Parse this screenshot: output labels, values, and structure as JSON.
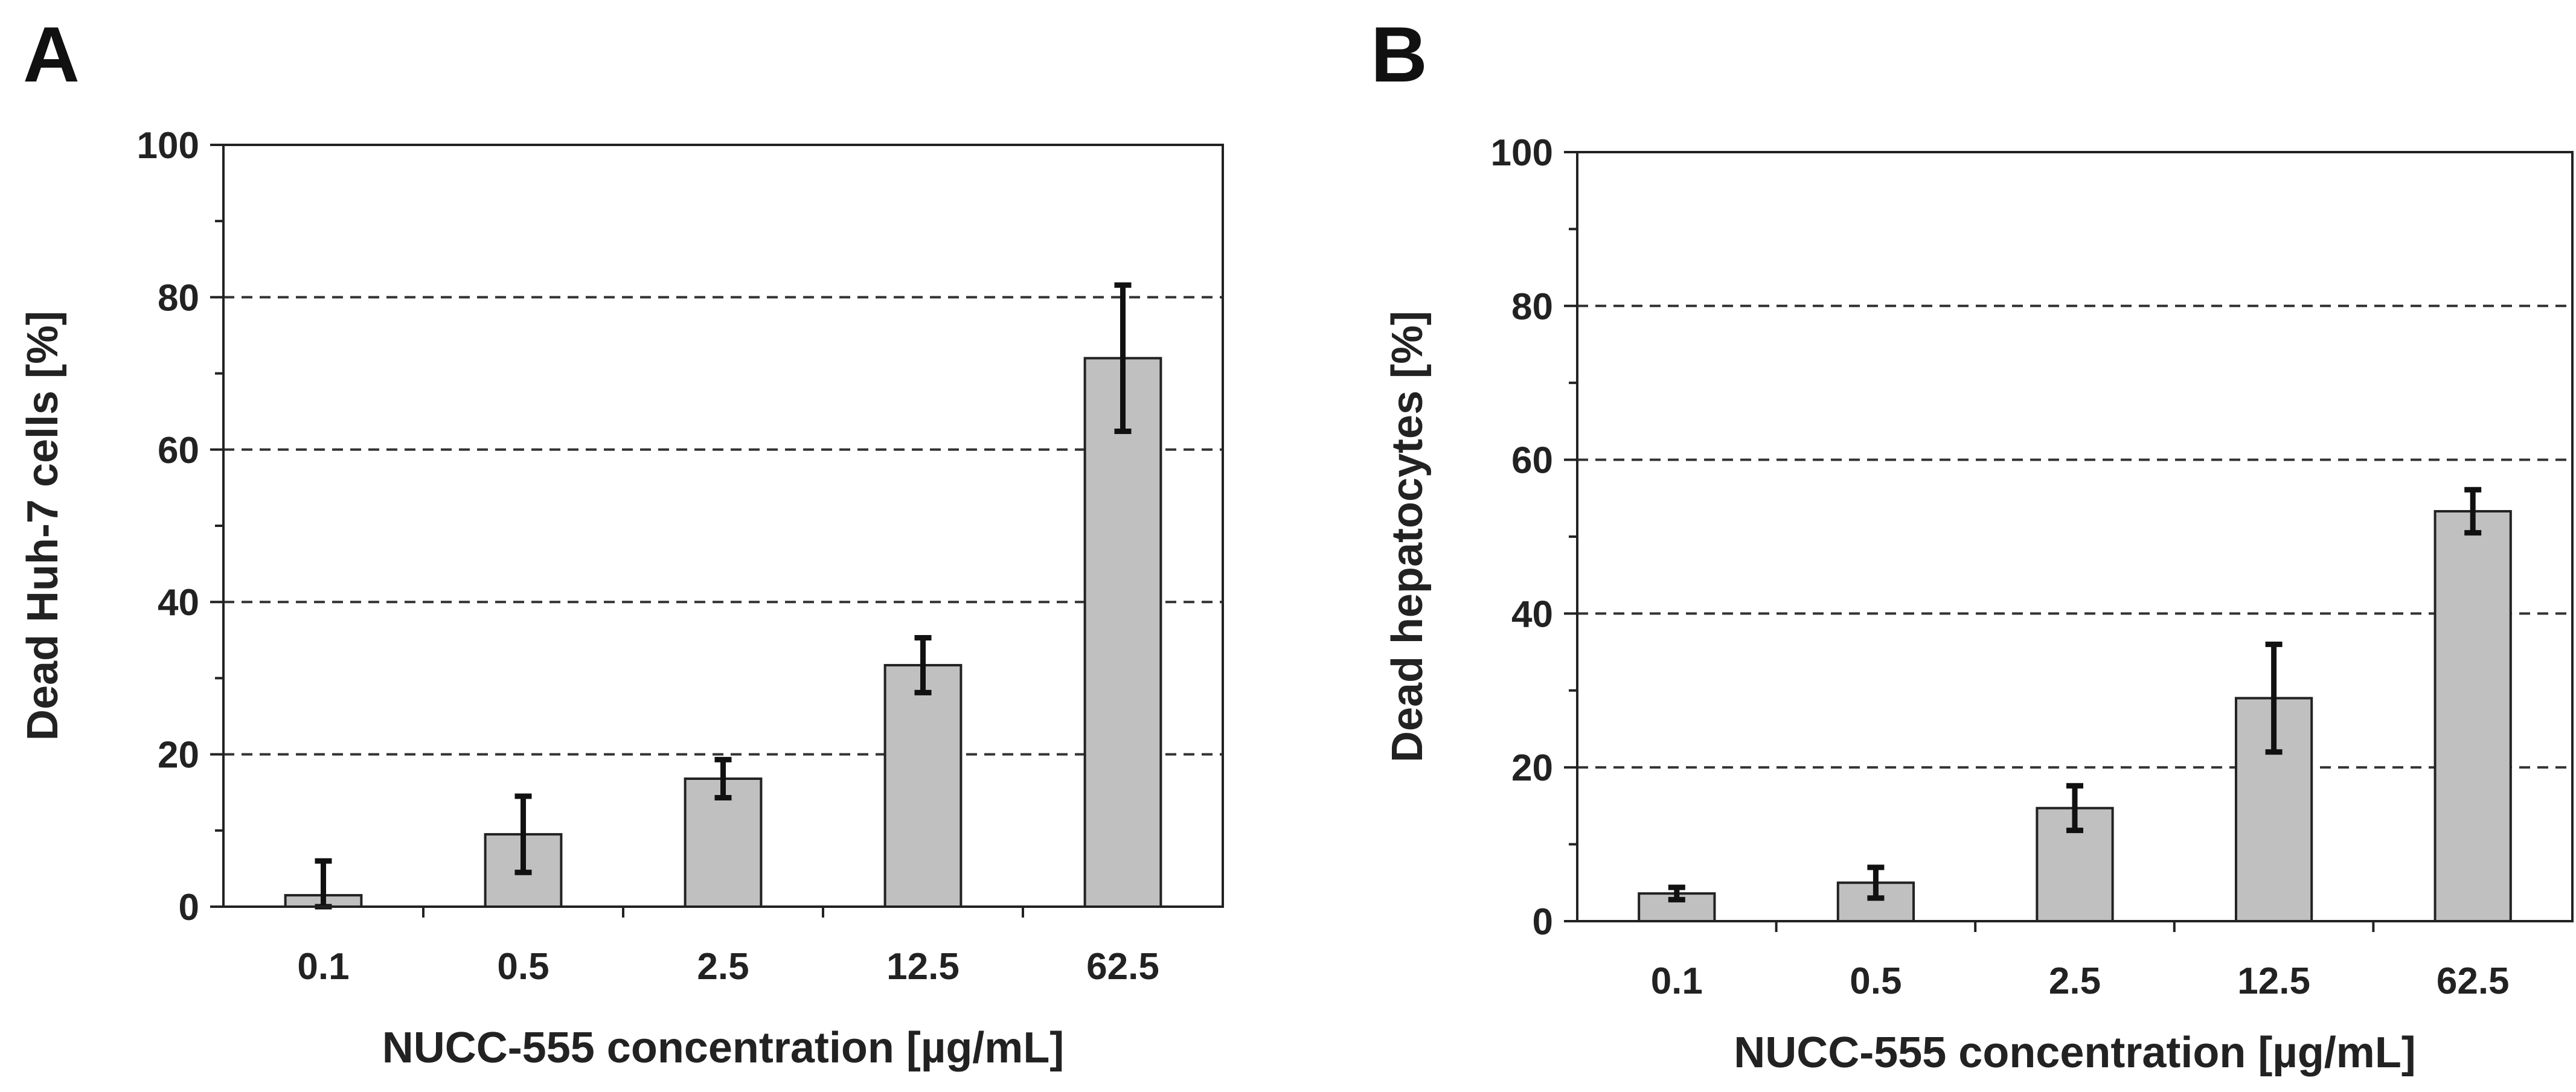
{
  "chart_data": [
    {
      "panel": "A",
      "type": "bar",
      "title": "",
      "xlabel": "NUCC-555 concentration [µg/mL]",
      "ylabel": "Dead Huh-7 cells [%]",
      "categories": [
        "0.1",
        "0.5",
        "2.5",
        "12.5",
        "62.5"
      ],
      "values": [
        1.5,
        9.5,
        16.8,
        31.7,
        72.0
      ],
      "errors": [
        4.5,
        5.0,
        2.5,
        3.6,
        9.6
      ],
      "ylim": [
        0,
        100
      ],
      "yticks": [
        0,
        20,
        40,
        60,
        80,
        100
      ],
      "grid": "dashed horizontal at 20, 40, 60, 80"
    },
    {
      "panel": "B",
      "type": "bar",
      "title": "",
      "xlabel": "NUCC-555 concentration [µg/mL]",
      "ylabel": "Dead hepatocytes [%]",
      "categories": [
        "0.1",
        "0.5",
        "2.5",
        "12.5",
        "62.5"
      ],
      "values": [
        3.6,
        5.0,
        14.7,
        29.0,
        53.3
      ],
      "errors": [
        0.8,
        2.0,
        2.9,
        7.0,
        2.8
      ],
      "ylim": [
        0,
        100
      ],
      "yticks": [
        0,
        20,
        40,
        60,
        80,
        100
      ],
      "grid": "dashed horizontal at 20, 40, 60, 80"
    }
  ]
}
